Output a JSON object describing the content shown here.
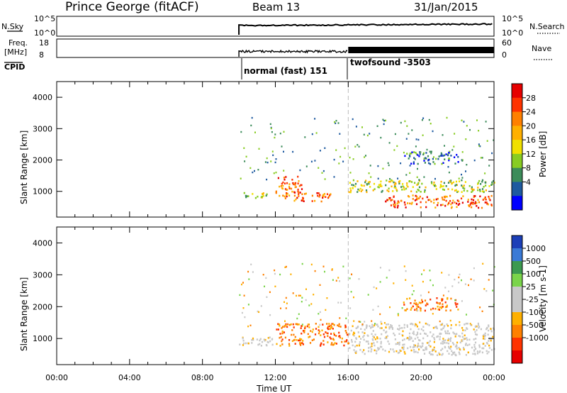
{
  "header": {
    "station": "Prince George (fitACF)",
    "beam": "Beam 13",
    "date": "31/Jan/2015"
  },
  "status_panels": {
    "nsky_label": "N.Sky",
    "nsearch_label": "N.Search",
    "freq_label_line1": "Freq.",
    "freq_label_line2": "[MHz]",
    "nave_label": "Nave",
    "cpid_label": "CPID",
    "noise_ticks": [
      "10^5",
      "10^0"
    ],
    "noise_right_ticks": [
      "10^5",
      "10^0"
    ],
    "freq_ticks": [
      "18",
      "8"
    ],
    "nave_ticks": [
      "60",
      "0"
    ],
    "cpid_entries": [
      {
        "start": "10:00",
        "label": "normal (fast) 151"
      },
      {
        "start": "16:00",
        "label": "twofsound -3503"
      }
    ]
  },
  "chart_data": [
    {
      "type": "heatmap",
      "panel": "power",
      "xlabel": "Time UT",
      "ylabel": "Slant Range [km]",
      "x_ticks": [
        "00:00",
        "04:00",
        "08:00",
        "12:00",
        "16:00",
        "20:00",
        "00:00"
      ],
      "xlim_hours": [
        0,
        24
      ],
      "ylim": [
        180,
        4500
      ],
      "y_ticks": [
        1000,
        2000,
        3000,
        4000
      ],
      "colorbar_label": "Power [dB]",
      "colorbar_ticks": [
        "28",
        "24",
        "20",
        "16",
        "12",
        "8",
        "4"
      ],
      "colorbar_colors": [
        "#e60000",
        "#ff3300",
        "#ff8000",
        "#ffb000",
        "#f0e000",
        "#88cc22",
        "#3c8c5a",
        "#1e5aa0",
        "#0000ff"
      ],
      "data_start_hour": 10,
      "mode_change_hour": 16,
      "echo_regions": [
        {
          "t0": 10.0,
          "t1": 11.5,
          "r0": 800,
          "r1": 1000,
          "level": "mid"
        },
        {
          "t0": 12.0,
          "t1": 13.5,
          "r0": 800,
          "r1": 1500,
          "level": "high"
        },
        {
          "t0": 13.0,
          "t1": 15.0,
          "r0": 700,
          "r1": 1000,
          "level": "high"
        },
        {
          "t0": 16.0,
          "t1": 24.0,
          "r0": 1000,
          "r1": 1400,
          "level": "mid"
        },
        {
          "t0": 18.0,
          "t1": 24.0,
          "r0": 500,
          "r1": 900,
          "level": "high"
        },
        {
          "t0": 19.0,
          "t1": 22.0,
          "r0": 1900,
          "r1": 2300,
          "level": "low"
        }
      ]
    },
    {
      "type": "heatmap",
      "panel": "velocity",
      "xlabel": "Time UT",
      "ylabel": "Slant Range [km]",
      "x_ticks": [
        "00:00",
        "04:00",
        "08:00",
        "12:00",
        "16:00",
        "20:00",
        "00:00"
      ],
      "xlim_hours": [
        0,
        24
      ],
      "ylim": [
        180,
        4500
      ],
      "y_ticks": [
        1000,
        2000,
        3000,
        4000
      ],
      "colorbar_label": "Velocity [m s-1]",
      "colorbar_ticks": [
        "1000",
        "500",
        "100",
        "25",
        "-25",
        "-100",
        "-500",
        "-1000"
      ],
      "colorbar_colors": [
        "#1c3fb8",
        "#3a7ad6",
        "#3c9a50",
        "#7ad44a",
        "#c8c8c8",
        "#c8c8c8",
        "#ffb000",
        "#ff8000",
        "#ff3300",
        "#e60000"
      ],
      "data_start_hour": 10,
      "mode_change_hour": 16,
      "echo_regions": [
        {
          "t0": 10.0,
          "t1": 12.0,
          "r0": 800,
          "r1": 1100,
          "level": "ground"
        },
        {
          "t0": 12.0,
          "t1": 16.0,
          "r0": 800,
          "r1": 1500,
          "level": "away"
        },
        {
          "t0": 16.0,
          "t1": 24.0,
          "r0": 500,
          "r1": 1500,
          "level": "ground"
        },
        {
          "t0": 19.0,
          "t1": 22.0,
          "r0": 1900,
          "r1": 2300,
          "level": "away"
        }
      ]
    }
  ]
}
